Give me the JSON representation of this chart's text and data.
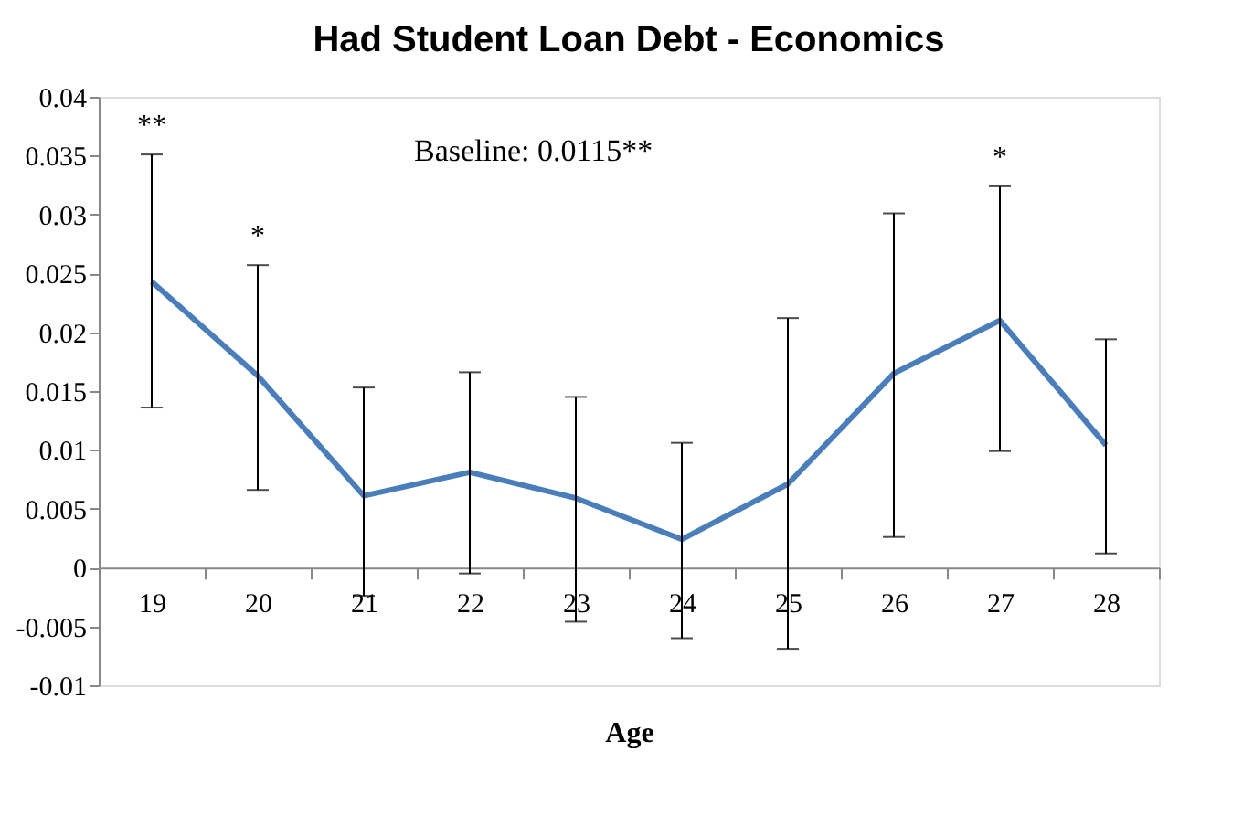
{
  "chart_data": {
    "type": "line",
    "title": "Had Student Loan Debt - Economics",
    "xlabel": "Age",
    "categories": [
      "19",
      "20",
      "21",
      "22",
      "23",
      "24",
      "25",
      "26",
      "27",
      "28"
    ],
    "series": [
      {
        "color": "#4a7ebb",
        "values": [
          0.0243,
          0.0163,
          0.0061,
          0.0081,
          0.0059,
          0.0024,
          0.0071,
          0.0165,
          0.021,
          0.0104
        ],
        "errors": [
          [
            0.0136,
            0.0351
          ],
          [
            0.0066,
            0.0257
          ],
          [
            -0.0024,
            0.0153
          ],
          [
            -0.0005,
            0.0166
          ],
          [
            -0.0046,
            0.0145
          ],
          [
            -0.006,
            0.0106
          ],
          [
            -0.0069,
            0.0212
          ],
          [
            0.0026,
            0.0301
          ],
          [
            0.0099,
            0.0324
          ],
          [
            0.0012,
            0.0194
          ]
        ]
      }
    ],
    "ylim": [
      -0.01,
      0.04
    ],
    "yticks": [
      -0.01,
      -0.005,
      0,
      0.005,
      0.01,
      0.015,
      0.02,
      0.025,
      0.03,
      0.035,
      0.04
    ],
    "annotations": [
      {
        "text": "**",
        "x": "19",
        "y": 0.0351
      },
      {
        "text": "*",
        "x": "20",
        "y": 0.0257
      },
      {
        "text": "*",
        "x": "27",
        "y": 0.0324
      },
      "Baseline:  0.0115**"
    ]
  }
}
